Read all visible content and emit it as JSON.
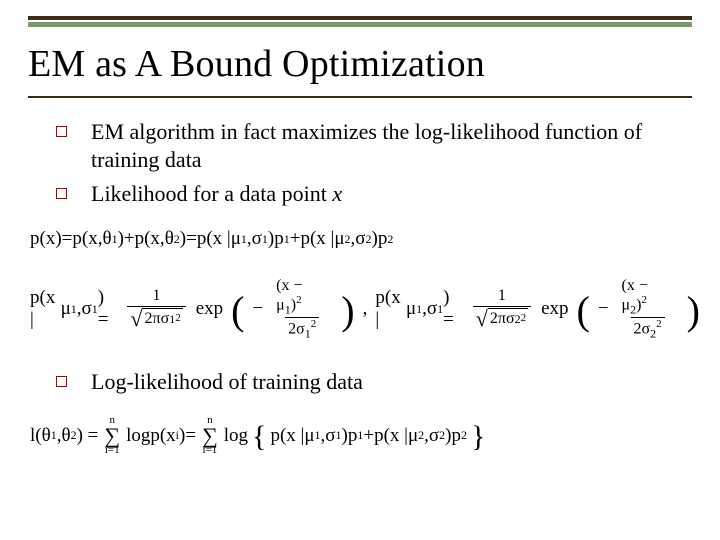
{
  "colors": {
    "rule_dark": "#3a2c1a",
    "rule_accent": "#7a976a",
    "bullet_border": "#7a1818",
    "text": "#000000",
    "background": "#ffffff"
  },
  "typography": {
    "title_fontsize": 38,
    "body_fontsize": 22,
    "math_fontsize": 19,
    "font_family": "Times New Roman"
  },
  "title": "EM as A Bound Optimization",
  "bullets_top": [
    "EM algorithm in fact maximizes the log-likelihood function of training data",
    "Likelihood for a data point"
  ],
  "bullet2_tail_italic": "x",
  "bullets_bottom": [
    "Log-likelihood of training data"
  ],
  "eq": {
    "line1": {
      "lhs": "p(x)",
      "eq1": " = ",
      "t1a": "p(x,",
      "t1b": ")",
      "theta1": "θ",
      "sub1": "1",
      "plus1": " + ",
      "t2a": "p(x,",
      "t2b": ")",
      "theta2": "θ",
      "sub2": "2",
      "eq2": " = ",
      "t3a": "p(x | ",
      "mu": "μ",
      "sigma": "σ",
      "comma": ",",
      "t3b": ")",
      "p": "p",
      "plus2": " + "
    },
    "line2": {
      "lhs1": "p(x | ",
      "mu": "μ",
      "sigma": "σ",
      "comma": ",",
      "lhs2": ") = ",
      "one": "1",
      "two_pi": "2π",
      "exp": "exp",
      "minus": "−",
      "xminus": "(x − ",
      "sq": ")",
      "two": "2",
      "sep": " , "
    },
    "line3": {
      "lhs": "l(",
      "theta": "θ",
      "sub1": "1",
      "sub2": "2",
      "comma": ",",
      "rhs1": ") = ",
      "sum_lo": "i=1",
      "sum_hi": "n",
      "log": "log ",
      "px": "p(x",
      "subi": "i",
      "close": ")",
      "eq": " = ",
      "open_brace": "{",
      "close_brace": "}",
      "pcond": "p(x | ",
      "mu": "μ",
      "sigma": "σ",
      "p": "p",
      "plus": " + "
    }
  }
}
